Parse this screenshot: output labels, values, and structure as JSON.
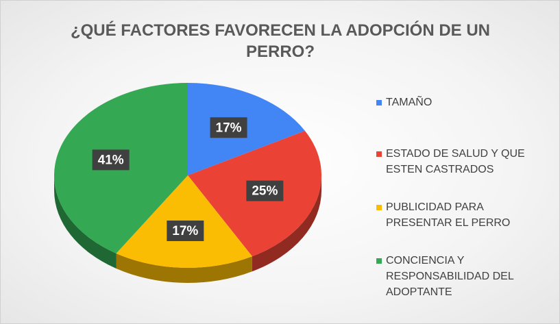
{
  "chart_data": {
    "type": "pie",
    "title": "¿QUÉ FACTORES FAVORECEN LA ADOPCIÓN DE UN PERRO?",
    "categories": [
      "TAMAÑO",
      "ESTADO DE SALUD Y QUE ESTEN CASTRADOS",
      "PUBLICIDAD PARA PRESENTAR EL PERRO",
      "CONCIENCIA Y RESPONSABILIDAD DEL ADOPTANTE"
    ],
    "values": [
      17,
      25,
      17,
      41
    ],
    "value_labels": [
      "17%",
      "25%",
      "17%",
      "41%"
    ],
    "colors": [
      "#4285f4",
      "#ea4335",
      "#fbbc04",
      "#34a853"
    ],
    "legend": "right"
  }
}
